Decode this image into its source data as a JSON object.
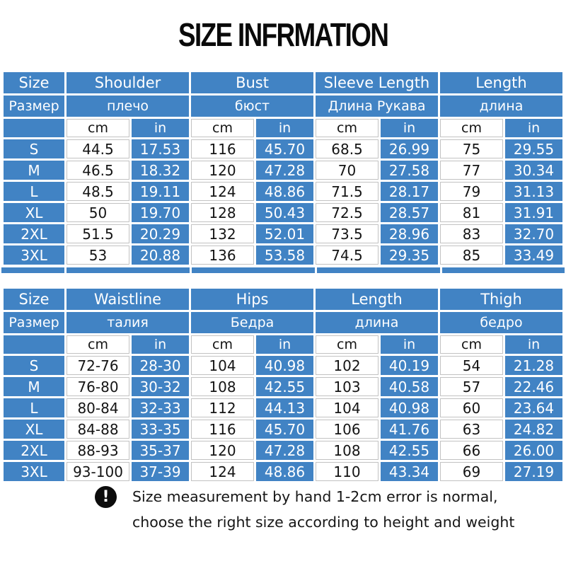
{
  "title": "SIZE INFRMATION",
  "colors": {
    "header_blue": "#4183C4",
    "cell_text_dark": "#141414",
    "white_cell_border": "#c2c2c2",
    "icon_black": "#0c0c0c"
  },
  "table1": {
    "groups": [
      {
        "en": "Size",
        "ru": "Размер"
      },
      {
        "en": "Shoulder",
        "ru": "плечо"
      },
      {
        "en": "Bust",
        "ru": "бюст"
      },
      {
        "en": "Sleeve Length",
        "ru": "Длина Рукава"
      },
      {
        "en": "Length",
        "ru": "длина"
      }
    ],
    "unit_cm": "cm",
    "unit_in": "in",
    "rows": [
      {
        "size": "S",
        "values": [
          "44.5",
          "17.53",
          "116",
          "45.70",
          "68.5",
          "26.99",
          "75",
          "29.55"
        ]
      },
      {
        "size": "M",
        "values": [
          "46.5",
          "18.32",
          "120",
          "47.28",
          "70",
          "27.58",
          "77",
          "30.34"
        ]
      },
      {
        "size": "L",
        "values": [
          "48.5",
          "19.11",
          "124",
          "48.86",
          "71.5",
          "28.17",
          "79",
          "31.13"
        ]
      },
      {
        "size": "XL",
        "values": [
          "50",
          "19.70",
          "128",
          "50.43",
          "72.5",
          "28.57",
          "81",
          "31.91"
        ]
      },
      {
        "size": "2XL",
        "values": [
          "51.5",
          "20.29",
          "132",
          "52.01",
          "73.5",
          "28.96",
          "83",
          "32.70"
        ]
      },
      {
        "size": "3XL",
        "values": [
          "53",
          "20.88",
          "136",
          "53.58",
          "74.5",
          "29.35",
          "85",
          "33.49"
        ]
      }
    ]
  },
  "table2": {
    "groups": [
      {
        "en": "Size",
        "ru": "Размер"
      },
      {
        "en": "Waistline",
        "ru": "талия"
      },
      {
        "en": "Hips",
        "ru": "Бедра"
      },
      {
        "en": "Length",
        "ru": "длина"
      },
      {
        "en": "Thigh",
        "ru": "бедро"
      }
    ],
    "unit_cm": "cm",
    "unit_in": "in",
    "rows": [
      {
        "size": "S",
        "values": [
          "72-76",
          "28-30",
          "104",
          "40.98",
          "102",
          "40.19",
          "54",
          "21.28"
        ]
      },
      {
        "size": "M",
        "values": [
          "76-80",
          "30-32",
          "108",
          "42.55",
          "103",
          "40.58",
          "57",
          "22.46"
        ]
      },
      {
        "size": "L",
        "values": [
          "80-84",
          "32-33",
          "112",
          "44.13",
          "104",
          "40.98",
          "60",
          "23.64"
        ]
      },
      {
        "size": "XL",
        "values": [
          "84-88",
          "33-35",
          "116",
          "45.70",
          "106",
          "41.76",
          "63",
          "24.82"
        ]
      },
      {
        "size": "2XL",
        "values": [
          "88-93",
          "35-37",
          "120",
          "47.28",
          "108",
          "42.55",
          "66",
          "26.00"
        ]
      },
      {
        "size": "3XL",
        "values": [
          "93-100",
          "37-39",
          "124",
          "48.86",
          "110",
          "43.34",
          "69",
          "27.19"
        ]
      }
    ]
  },
  "footer": {
    "icon": "exclamation-icon",
    "icon_glyph": "!",
    "line1": "Size measurement by hand 1-2cm error is normal,",
    "line2": "choose the right size according to height and weight"
  }
}
